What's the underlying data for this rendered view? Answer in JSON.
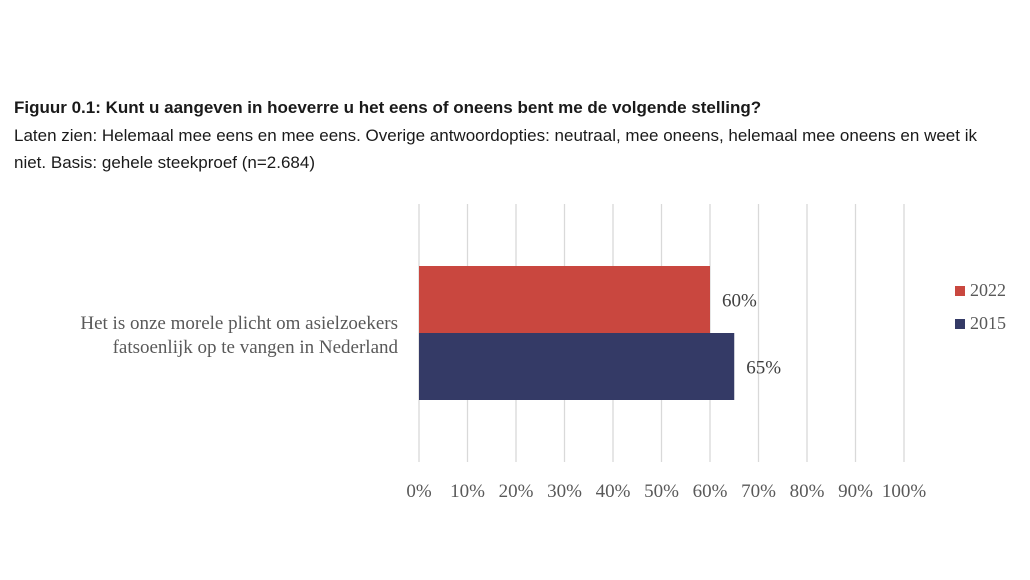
{
  "figure": {
    "title": "Figuur 0.1: Kunt u aangeven in hoeverre u het eens of oneens bent me de volgende stelling?",
    "subtitle": "Laten zien: Helemaal mee eens en mee eens. Overige antwoordopties: neutraal, mee oneens, helemaal mee oneens en weet ik niet. Basis: gehele steekproef (n=2.684)"
  },
  "chart_data": {
    "type": "bar",
    "orientation": "horizontal",
    "categories": [
      "Het is onze morele plicht om asielzoekers fatsoenlijk op te vangen in Nederland"
    ],
    "category_lines": [
      "Het is onze morele plicht om asielzoekers",
      "fatsoenlijk op te vangen in Nederland"
    ],
    "series": [
      {
        "name": "2022",
        "values": [
          60
        ],
        "labels": [
          "60%"
        ],
        "color": "#c9473f"
      },
      {
        "name": "2015",
        "values": [
          65
        ],
        "labels": [
          "65%"
        ],
        "color": "#343a66"
      }
    ],
    "xlim": [
      0,
      100
    ],
    "x_ticks": [
      "0%",
      "10%",
      "20%",
      "30%",
      "40%",
      "50%",
      "60%",
      "70%",
      "80%",
      "90%",
      "100%"
    ],
    "grid": true,
    "legend_position": "right"
  }
}
